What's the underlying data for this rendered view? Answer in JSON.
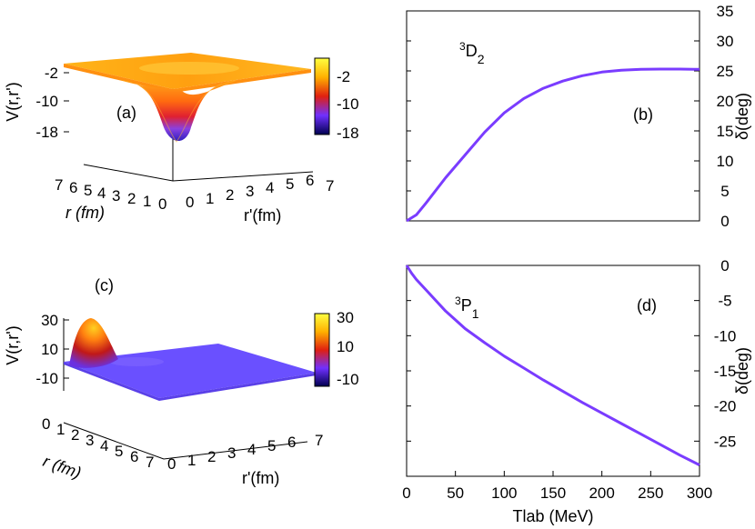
{
  "chart_data": [
    {
      "panel": "(a)",
      "type": "surface3d",
      "zlabel": "V(r,r')",
      "zticks": [
        "-2",
        "-10",
        "-18"
      ],
      "xlabel": "r (fm)",
      "xticks": [
        "7",
        "6",
        "5",
        "4",
        "3",
        "2",
        "1",
        "0"
      ],
      "ylabel": "r'(fm)",
      "yticks": [
        "0",
        "1",
        "2",
        "3",
        "4",
        "5",
        "6",
        "7"
      ],
      "colorbar_ticks": [
        "-2",
        "-10",
        "-18"
      ],
      "colorbar_range": [
        -20,
        2
      ],
      "description_values": {
        "well_depth_min": -20,
        "plateau": 0
      }
    },
    {
      "panel": "(b)",
      "type": "line",
      "annotation_base": "3",
      "annotation_letter": "D",
      "annotation_sub": "2",
      "ylabel": "δ(deg)",
      "xlim": [
        0,
        300
      ],
      "ylim": [
        0,
        35
      ],
      "yticks": [
        "0",
        "5",
        "10",
        "15",
        "20",
        "25",
        "30",
        "35"
      ],
      "x": [
        0,
        10,
        20,
        40,
        60,
        80,
        100,
        120,
        140,
        160,
        180,
        200,
        220,
        240,
        260,
        280,
        300
      ],
      "y": [
        0,
        1,
        3,
        7.2,
        11.0,
        14.8,
        18.0,
        20.4,
        22.1,
        23.3,
        24.2,
        24.8,
        25.1,
        25.25,
        25.3,
        25.3,
        25.25
      ],
      "color": "#7a3cff"
    },
    {
      "panel": "(c)",
      "type": "surface3d",
      "zlabel": "V(r,r')",
      "zticks": [
        "30",
        "10",
        "-10"
      ],
      "xlabel": "r (fm)",
      "xticks": [
        "0",
        "1",
        "2",
        "3",
        "4",
        "5",
        "6",
        "7"
      ],
      "ylabel": "r'(fm)",
      "yticks": [
        "0",
        "1",
        "2",
        "3",
        "4",
        "5",
        "6",
        "7"
      ],
      "colorbar_ticks": [
        "30",
        "10",
        "-10"
      ],
      "colorbar_range": [
        -15,
        35
      ]
    },
    {
      "panel": "(d)",
      "type": "line",
      "annotation_base": "3",
      "annotation_letter": "P",
      "annotation_sub": "1",
      "ylabel": "δ(deg)",
      "xlabel": "Tlab (MeV)",
      "xlim": [
        0,
        300
      ],
      "ylim": [
        -30,
        0
      ],
      "yticks": [
        "0",
        "-5",
        "-10",
        "-15",
        "-20",
        "-25"
      ],
      "xticks": [
        "0",
        "50",
        "100",
        "150",
        "200",
        "250",
        "300"
      ],
      "x": [
        0,
        5,
        10,
        20,
        40,
        60,
        80,
        100,
        120,
        140,
        160,
        180,
        200,
        220,
        240,
        260,
        280,
        300
      ],
      "y": [
        0,
        -1.1,
        -2.0,
        -3.5,
        -6.5,
        -9.0,
        -11.0,
        -12.9,
        -14.6,
        -16.3,
        -17.9,
        -19.5,
        -21.0,
        -22.5,
        -24.0,
        -25.5,
        -27.0,
        -28.4
      ],
      "color": "#7a3cff"
    }
  ]
}
